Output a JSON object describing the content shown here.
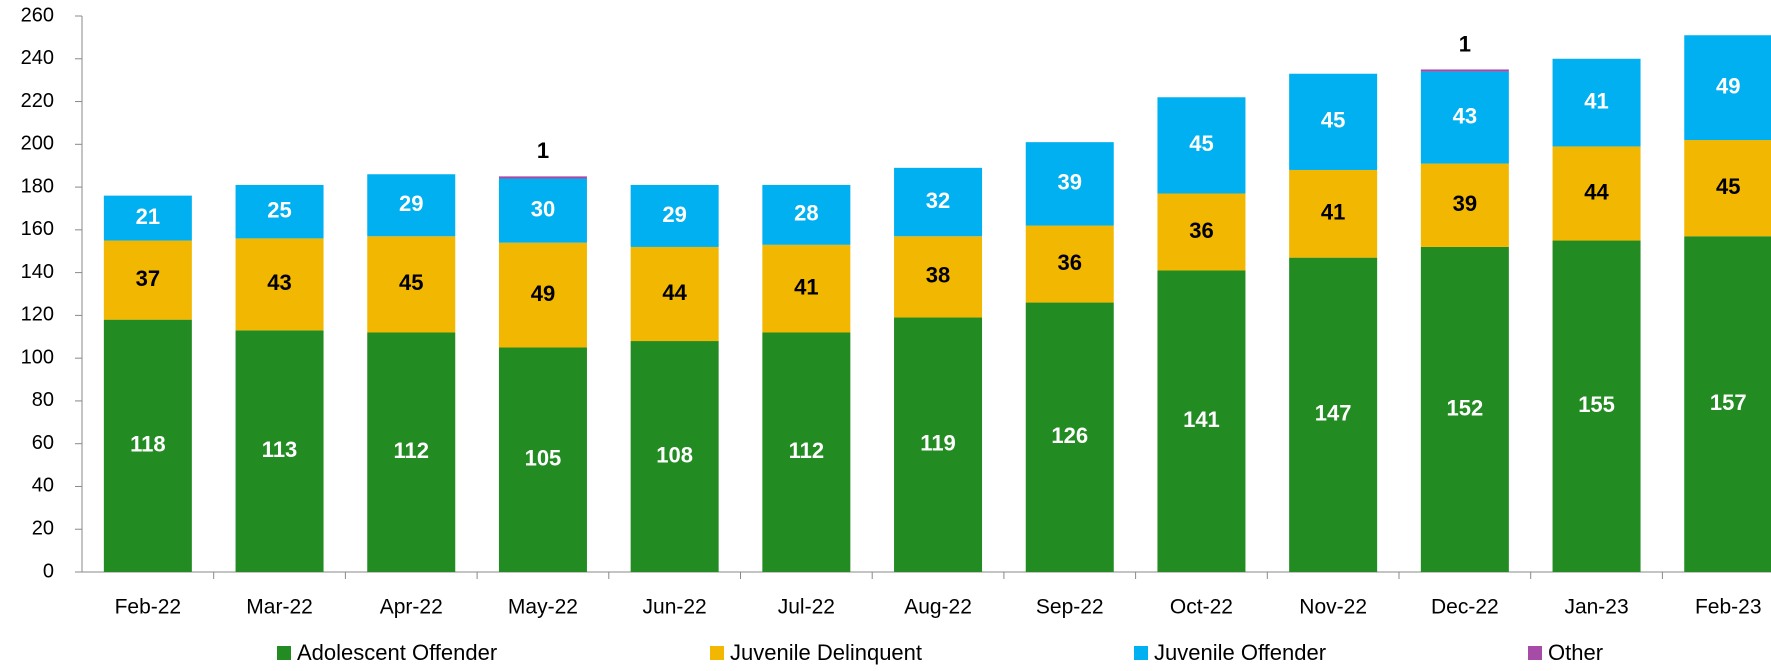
{
  "chart_data": {
    "type": "stacked_bar",
    "categories": [
      "Feb-22",
      "Mar-22",
      "Apr-22",
      "May-22",
      "Jun-22",
      "Jul-22",
      "Aug-22",
      "Sep-22",
      "Oct-22",
      "Nov-22",
      "Dec-22",
      "Jan-23",
      "Feb-23"
    ],
    "series": [
      {
        "name": "Adolescent Offender",
        "color": "#228b22",
        "values": [
          118,
          113,
          112,
          105,
          108,
          112,
          119,
          126,
          141,
          147,
          152,
          155,
          157
        ]
      },
      {
        "name": "Juvenile Delinquent",
        "color": "#f2b700",
        "values": [
          37,
          43,
          45,
          49,
          44,
          41,
          38,
          36,
          36,
          41,
          39,
          44,
          45
        ]
      },
      {
        "name": "Juvenile Offender",
        "color": "#00b0f0",
        "values": [
          21,
          25,
          29,
          30,
          29,
          28,
          32,
          39,
          45,
          45,
          43,
          41,
          49
        ]
      },
      {
        "name": "Other",
        "color": "#a64ca6",
        "values": [
          0,
          0,
          0,
          1,
          0,
          0,
          0,
          0,
          0,
          0,
          1,
          0,
          0
        ]
      }
    ],
    "ylim": [
      0,
      260
    ],
    "yticks": [
      0,
      20,
      40,
      60,
      80,
      100,
      120,
      140,
      160,
      180,
      200,
      220,
      240,
      260
    ]
  }
}
